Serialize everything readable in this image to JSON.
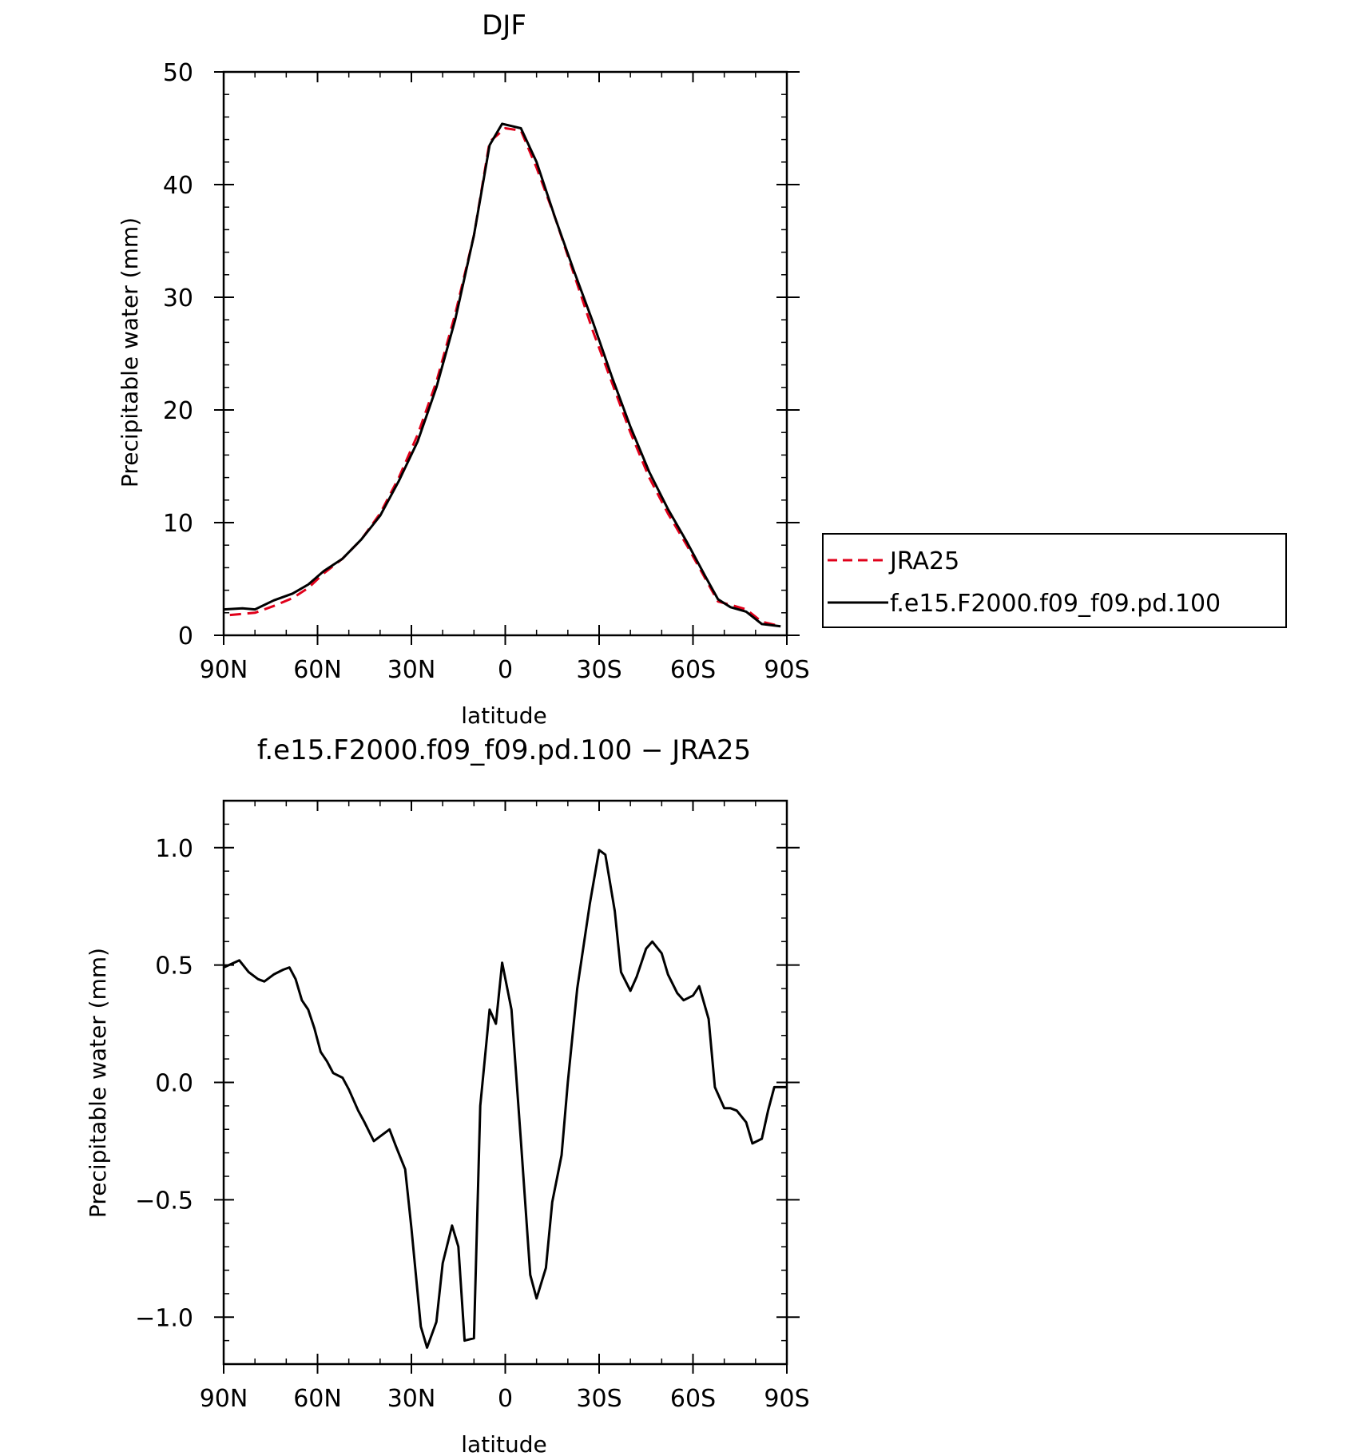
{
  "colors": {
    "jra25": "#e0001a",
    "model": "#000000"
  },
  "chart_data": [
    {
      "type": "line",
      "title": "DJF",
      "xlabel": "latitude",
      "ylabel": "Precipitable water (mm)",
      "xlim": [
        90,
        -90
      ],
      "ylim": [
        0,
        50
      ],
      "xticks": [
        {
          "value": 90,
          "label": "90N"
        },
        {
          "value": 60,
          "label": "60N"
        },
        {
          "value": 30,
          "label": "30N"
        },
        {
          "value": 0,
          "label": "0"
        },
        {
          "value": -30,
          "label": "30S"
        },
        {
          "value": -60,
          "label": "60S"
        },
        {
          "value": -90,
          "label": "90S"
        }
      ],
      "yticks": [
        {
          "value": 0,
          "label": "0"
        },
        {
          "value": 10,
          "label": "10"
        },
        {
          "value": 20,
          "label": "20"
        },
        {
          "value": 30,
          "label": "30"
        },
        {
          "value": 40,
          "label": "40"
        },
        {
          "value": 50,
          "label": "50"
        }
      ],
      "legend_position": "right",
      "series": [
        {
          "name": "JRA25",
          "style": "dashed",
          "color": "#e0001a",
          "x": [
            88,
            80,
            74,
            68,
            63,
            58,
            52,
            46,
            40,
            34,
            28,
            22,
            16,
            10,
            5,
            0,
            -5,
            -10,
            -16,
            -22,
            -28,
            -34,
            -40,
            -46,
            -52,
            -58,
            -64,
            -68,
            -72,
            -77,
            -82,
            -88
          ],
          "y": [
            1.8,
            2.0,
            2.6,
            3.3,
            4.2,
            5.5,
            6.8,
            8.5,
            10.8,
            14.0,
            17.8,
            22.5,
            28.5,
            35.5,
            43.8,
            45.0,
            44.8,
            41.5,
            37.0,
            32.0,
            27.0,
            22.5,
            18.0,
            14.0,
            10.8,
            8.0,
            5.0,
            3.0,
            2.7,
            2.3,
            1.2,
            0.8
          ]
        },
        {
          "name": "f.e15.F2000.f09_f09.pd.100",
          "style": "solid",
          "color": "#000000",
          "x": [
            90,
            84,
            80,
            74,
            68,
            63,
            58,
            52,
            46,
            40,
            34,
            28,
            22,
            16,
            10,
            5,
            1,
            -2,
            -5,
            -10,
            -16,
            -22,
            -28,
            -34,
            -40,
            -46,
            -52,
            -58,
            -64,
            -68,
            -72,
            -77,
            -82,
            -88
          ],
          "y": [
            2.3,
            2.4,
            2.3,
            3.1,
            3.7,
            4.5,
            5.7,
            6.8,
            8.5,
            10.6,
            13.7,
            17.2,
            22.0,
            28.0,
            35.5,
            43.5,
            45.4,
            45.2,
            45.0,
            42.0,
            37.0,
            32.3,
            27.8,
            23.0,
            18.5,
            14.5,
            11.2,
            8.3,
            5.2,
            3.2,
            2.5,
            2.1,
            1.0,
            0.8
          ]
        }
      ]
    },
    {
      "type": "line",
      "title": "f.e15.F2000.f09_f09.pd.100 − JRA25",
      "xlabel": "latitude",
      "ylabel": "Precipitable water (mm)",
      "xlim": [
        90,
        -90
      ],
      "ylim": [
        -1.2,
        1.2
      ],
      "xticks": [
        {
          "value": 90,
          "label": "90N"
        },
        {
          "value": 60,
          "label": "60N"
        },
        {
          "value": 30,
          "label": "30N"
        },
        {
          "value": 0,
          "label": "0"
        },
        {
          "value": -30,
          "label": "30S"
        },
        {
          "value": -60,
          "label": "60S"
        },
        {
          "value": -90,
          "label": "90S"
        }
      ],
      "yticks": [
        {
          "value": 1.0,
          "label": "1.0"
        },
        {
          "value": 0.5,
          "label": "0.5"
        },
        {
          "value": 0.0,
          "label": "0.0"
        },
        {
          "value": -0.5,
          "label": "−0.5"
        },
        {
          "value": -1.0,
          "label": "−1.0"
        }
      ],
      "series": [
        {
          "style": "solid",
          "color": "#000000",
          "x": [
            90,
            85,
            82,
            79,
            77,
            74,
            71,
            69,
            67,
            65,
            63,
            61,
            59,
            57,
            55,
            52,
            50,
            47,
            45,
            42,
            40,
            37,
            35,
            32,
            30,
            27,
            25,
            22,
            20,
            17,
            15,
            13,
            10,
            8,
            5,
            3,
            1,
            -2,
            -5,
            -8,
            -10,
            -13,
            -15,
            -18,
            -20,
            -23,
            -27,
            -30,
            -32,
            -35,
            -37,
            -40,
            -42,
            -45,
            -47,
            -50,
            -52,
            -55,
            -57,
            -60,
            -62,
            -65,
            -67,
            -70,
            -72,
            -74,
            -77,
            -79,
            -82,
            -84,
            -86,
            -88,
            -90
          ],
          "y": [
            0.49,
            0.52,
            0.47,
            0.44,
            0.43,
            0.46,
            0.48,
            0.49,
            0.44,
            0.35,
            0.31,
            0.23,
            0.13,
            0.09,
            0.04,
            0.02,
            -0.03,
            -0.12,
            -0.17,
            -0.25,
            -0.23,
            -0.2,
            -0.27,
            -0.37,
            -0.62,
            -1.04,
            -1.13,
            -1.02,
            -0.77,
            -0.61,
            -0.7,
            -1.1,
            -1.09,
            -0.1,
            0.31,
            0.25,
            0.51,
            0.31,
            -0.25,
            -0.82,
            -0.92,
            -0.79,
            -0.51,
            -0.31,
            0.0,
            0.4,
            0.76,
            0.99,
            0.97,
            0.73,
            0.47,
            0.39,
            0.45,
            0.57,
            0.6,
            0.55,
            0.46,
            0.38,
            0.35,
            0.37,
            0.41,
            0.27,
            -0.02,
            -0.11,
            -0.11,
            -0.12,
            -0.17,
            -0.26,
            -0.24,
            -0.12,
            -0.02,
            -0.02,
            -0.02
          ]
        }
      ]
    }
  ]
}
